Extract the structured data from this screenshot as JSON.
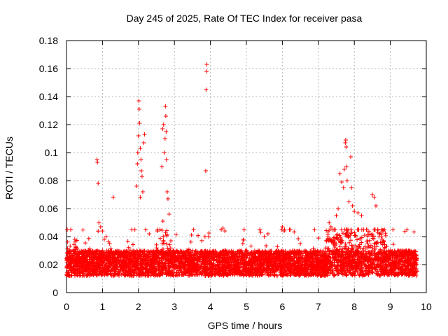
{
  "chart_data": {
    "type": "scatter",
    "title": "Day 245 of 2025, Rate Of TEC Index for receiver pasa",
    "xlabel": "GPS time / hours",
    "ylabel": "ROTI / TECUs",
    "xlim": [
      0,
      10
    ],
    "ylim": [
      0,
      0.18
    ],
    "xticks": [
      0,
      1,
      2,
      3,
      4,
      5,
      6,
      7,
      8,
      9,
      10
    ],
    "yticks": [
      0,
      0.02,
      0.04,
      0.06,
      0.08,
      0.1,
      0.12,
      0.14,
      0.16,
      0.18
    ],
    "xtick_labels": [
      "0",
      "1",
      "2",
      "3",
      "4",
      "5",
      "6",
      "7",
      "8",
      "9",
      "10"
    ],
    "ytick_labels": [
      "0",
      "0.02",
      "0.04",
      "0.06",
      "0.08",
      "0.1",
      "0.12",
      "0.14",
      "0.16",
      "0.18"
    ],
    "grid": true,
    "marker": "+",
    "marker_color": "#ff0000",
    "series": [
      {
        "name": "ROTI",
        "points": [
          [
            0.85,
            0.095
          ],
          [
            0.86,
            0.093
          ],
          [
            0.88,
            0.078
          ],
          [
            0.9,
            0.05
          ],
          [
            0.95,
            0.047
          ],
          [
            1.0,
            0.044
          ],
          [
            1.05,
            0.038
          ],
          [
            1.1,
            0.04
          ],
          [
            1.2,
            0.035
          ],
          [
            1.3,
            0.068
          ],
          [
            1.9,
            0.045
          ],
          [
            1.95,
            0.076
          ],
          [
            1.97,
            0.092
          ],
          [
            1.98,
            0.1
          ],
          [
            2.0,
            0.112
          ],
          [
            2.01,
            0.137
          ],
          [
            2.02,
            0.131
          ],
          [
            2.03,
            0.121
          ],
          [
            2.05,
            0.103
          ],
          [
            2.07,
            0.095
          ],
          [
            2.08,
            0.087
          ],
          [
            2.1,
            0.083
          ],
          [
            2.12,
            0.072
          ],
          [
            2.15,
            0.107
          ],
          [
            2.17,
            0.113
          ],
          [
            2.05,
            0.068
          ],
          [
            2.2,
            0.045
          ],
          [
            2.3,
            0.042
          ],
          [
            2.65,
            0.09
          ],
          [
            2.67,
            0.117
          ],
          [
            2.7,
            0.12
          ],
          [
            2.72,
            0.1
          ],
          [
            2.74,
            0.11
          ],
          [
            2.75,
            0.133
          ],
          [
            2.76,
            0.126
          ],
          [
            2.77,
            0.115
          ],
          [
            2.78,
            0.095
          ],
          [
            2.8,
            0.072
          ],
          [
            2.82,
            0.067
          ],
          [
            2.85,
            0.056
          ],
          [
            2.68,
            0.051
          ],
          [
            2.9,
            0.037
          ],
          [
            3.85,
            0.04
          ],
          [
            3.87,
            0.087
          ],
          [
            3.88,
            0.145
          ],
          [
            3.89,
            0.158
          ],
          [
            3.9,
            0.163
          ],
          [
            3.95,
            0.04
          ],
          [
            4.3,
            0.045
          ],
          [
            4.35,
            0.046
          ],
          [
            4.4,
            0.044
          ],
          [
            4.9,
            0.035
          ],
          [
            5.4,
            0.043
          ],
          [
            5.5,
            0.04
          ],
          [
            5.6,
            0.042
          ],
          [
            6.0,
            0.047
          ],
          [
            6.05,
            0.044
          ],
          [
            6.5,
            0.035
          ],
          [
            7.3,
            0.05
          ],
          [
            7.35,
            0.047
          ],
          [
            7.5,
            0.055
          ],
          [
            7.55,
            0.06
          ],
          [
            7.6,
            0.085
          ],
          [
            7.65,
            0.079
          ],
          [
            7.7,
            0.075
          ],
          [
            7.72,
            0.088
          ],
          [
            7.75,
            0.107
          ],
          [
            7.76,
            0.109
          ],
          [
            7.77,
            0.104
          ],
          [
            7.78,
            0.09
          ],
          [
            7.8,
            0.08
          ],
          [
            7.85,
            0.065
          ],
          [
            7.9,
            0.097
          ],
          [
            7.92,
            0.075
          ],
          [
            7.95,
            0.062
          ],
          [
            8.0,
            0.058
          ],
          [
            8.1,
            0.057
          ],
          [
            8.2,
            0.055
          ],
          [
            8.5,
            0.07
          ],
          [
            8.55,
            0.068
          ],
          [
            8.6,
            0.062
          ],
          [
            8.65,
            0.045
          ],
          [
            8.7,
            0.042
          ],
          [
            8.75,
            0.04
          ],
          [
            8.8,
            0.036
          ],
          [
            8.9,
            0.033
          ],
          [
            9.2,
            0.03
          ],
          [
            9.4,
            0.029
          ]
        ]
      }
    ]
  }
}
